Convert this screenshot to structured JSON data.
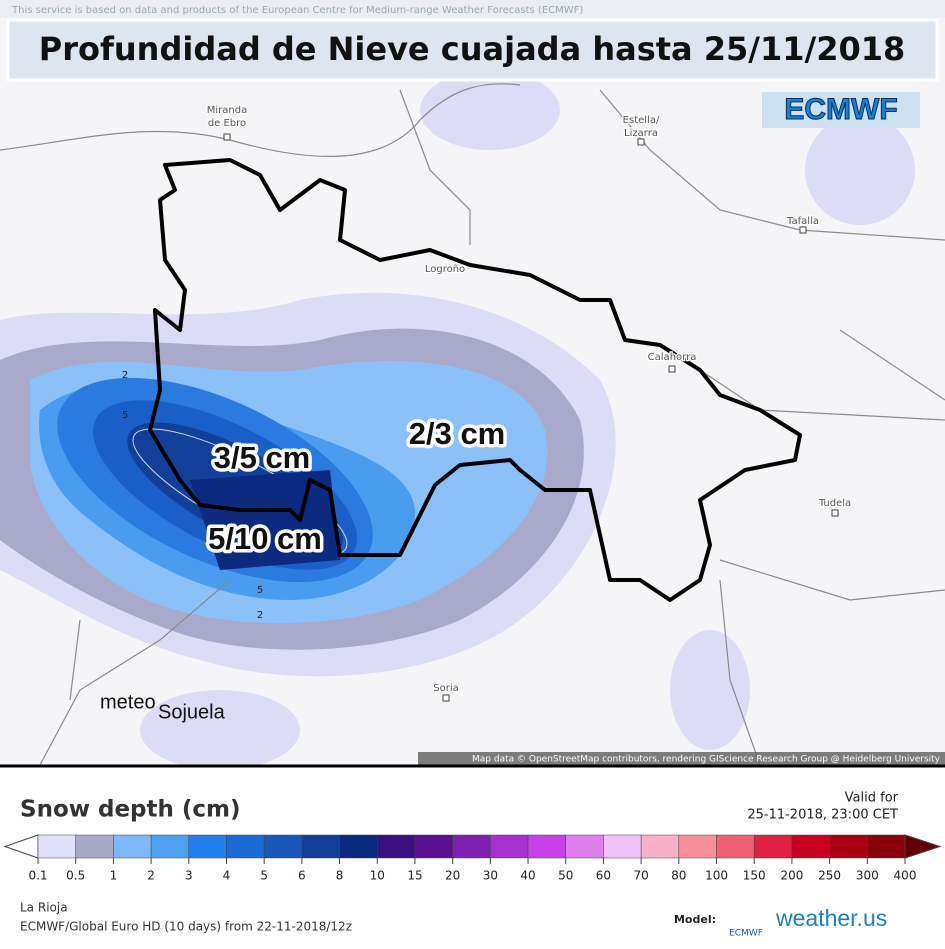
{
  "header": {
    "notice": "This service is based on data and products of the European Centre for Medium-range Weather Forecasts (ECMWF)",
    "title": "Profundidad de Nieve cuajada hasta 25/11/2018",
    "brand": "ECMWF"
  },
  "map": {
    "places": [
      {
        "lines": [
          "Miranda",
          "de Ebro"
        ]
      },
      {
        "lines": [
          "Estella/",
          "Lizarra"
        ]
      },
      {
        "lines": [
          "Tafalla"
        ]
      },
      {
        "lines": [
          "Logroño"
        ]
      },
      {
        "lines": [
          "Calahorra"
        ]
      },
      {
        "lines": [
          "Tudela"
        ]
      },
      {
        "lines": [
          "Soria"
        ]
      }
    ],
    "annotations": [
      "3/5 cm",
      "2/3 cm",
      "5/10 cm"
    ],
    "contour_labels": [
      "2",
      "5",
      "5",
      "2"
    ],
    "watermark": [
      "meteo",
      "Sojuela"
    ],
    "attribution": "Map data © OpenStreetMap contributors, rendering GIScience Research Group @ Heidelberg University"
  },
  "legend": {
    "title": "Snow depth (cm)",
    "valid_label": "Valid for",
    "valid_time": "25-11-2018, 23:00 CET",
    "levels": [
      0.1,
      0.5,
      1,
      2,
      3,
      4,
      5,
      6,
      8,
      10,
      15,
      20,
      30,
      40,
      50,
      60,
      70,
      80,
      100,
      150,
      200,
      250,
      300,
      400
    ],
    "colors": [
      "#ffffff",
      "#e0e0f8",
      "#a8a8c8",
      "#7fb8f8",
      "#4da0f0",
      "#2080f0",
      "#1a6ad8",
      "#1a55b8",
      "#103f98",
      "#0a2a80",
      "#3a1080",
      "#5a1090",
      "#8020b0",
      "#a830d0",
      "#c840e8",
      "#e080f0",
      "#f0c0f8",
      "#f8b0c8",
      "#f89098",
      "#f06070",
      "#e02040",
      "#c80020",
      "#a80010",
      "#880008",
      "#600000"
    ]
  },
  "footer": {
    "region": "La Rioja",
    "run": "ECMWF/Global Euro HD (10 days) from 22-11-2018/12z",
    "model_label": "Model:",
    "model_logo": "ECMWF",
    "brand": "weather.us"
  }
}
